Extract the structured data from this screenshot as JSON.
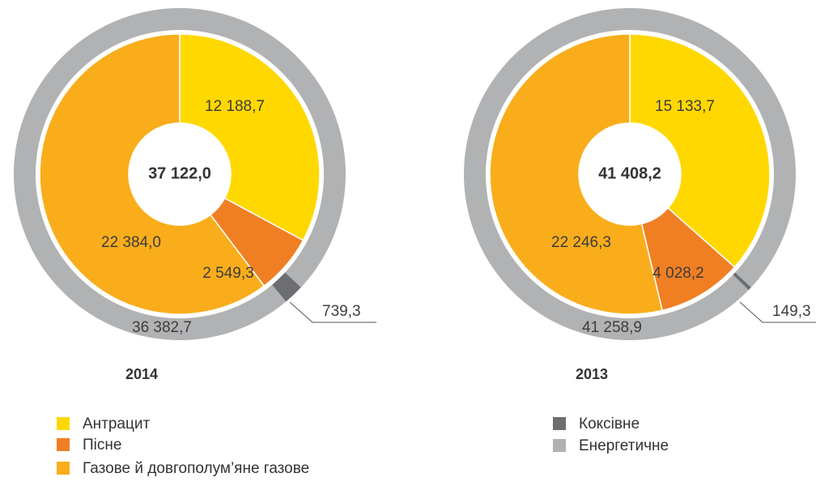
{
  "chart_data": [
    {
      "type": "donut",
      "title": "2014",
      "center_label": "37 122,0",
      "rings": [
        {
          "values": [
            12188.7,
            2549.3,
            22384.0
          ],
          "value_labels": [
            "12 188,7",
            "2 549,3",
            "22 384,0"
          ],
          "colors": [
            "#ffd800",
            "#f07f23",
            "#f9ad1b"
          ]
        },
        {
          "values": [
            739.3,
            36382.7
          ],
          "value_labels": [
            "739,3",
            "36 382,7"
          ],
          "colors": [
            "#6d6e71",
            "#b1b2b4"
          ]
        }
      ]
    },
    {
      "type": "donut",
      "title": "2013",
      "center_label": "41 408,2",
      "rings": [
        {
          "values": [
            15133.7,
            4028.2,
            22246.3
          ],
          "value_labels": [
            "15 133,7",
            "4 028,2",
            "22 246,3"
          ],
          "colors": [
            "#ffd800",
            "#f07f23",
            "#f9ad1b"
          ]
        },
        {
          "values": [
            149.3,
            41258.9
          ],
          "value_labels": [
            "149,3",
            "41 258,9"
          ],
          "colors": [
            "#6d6e71",
            "#b1b2b4"
          ]
        }
      ]
    }
  ],
  "legend": [
    {
      "name": "Антрацит",
      "color": "#ffd800"
    },
    {
      "name": "Пісне",
      "color": "#f07f23"
    },
    {
      "name": "Газове й довгополум’яне газове",
      "color": "#f9ad1b"
    },
    {
      "name": "Коксівне",
      "color": "#6d6e71"
    },
    {
      "name": "Енергетичне",
      "color": "#b1b2b4"
    }
  ]
}
